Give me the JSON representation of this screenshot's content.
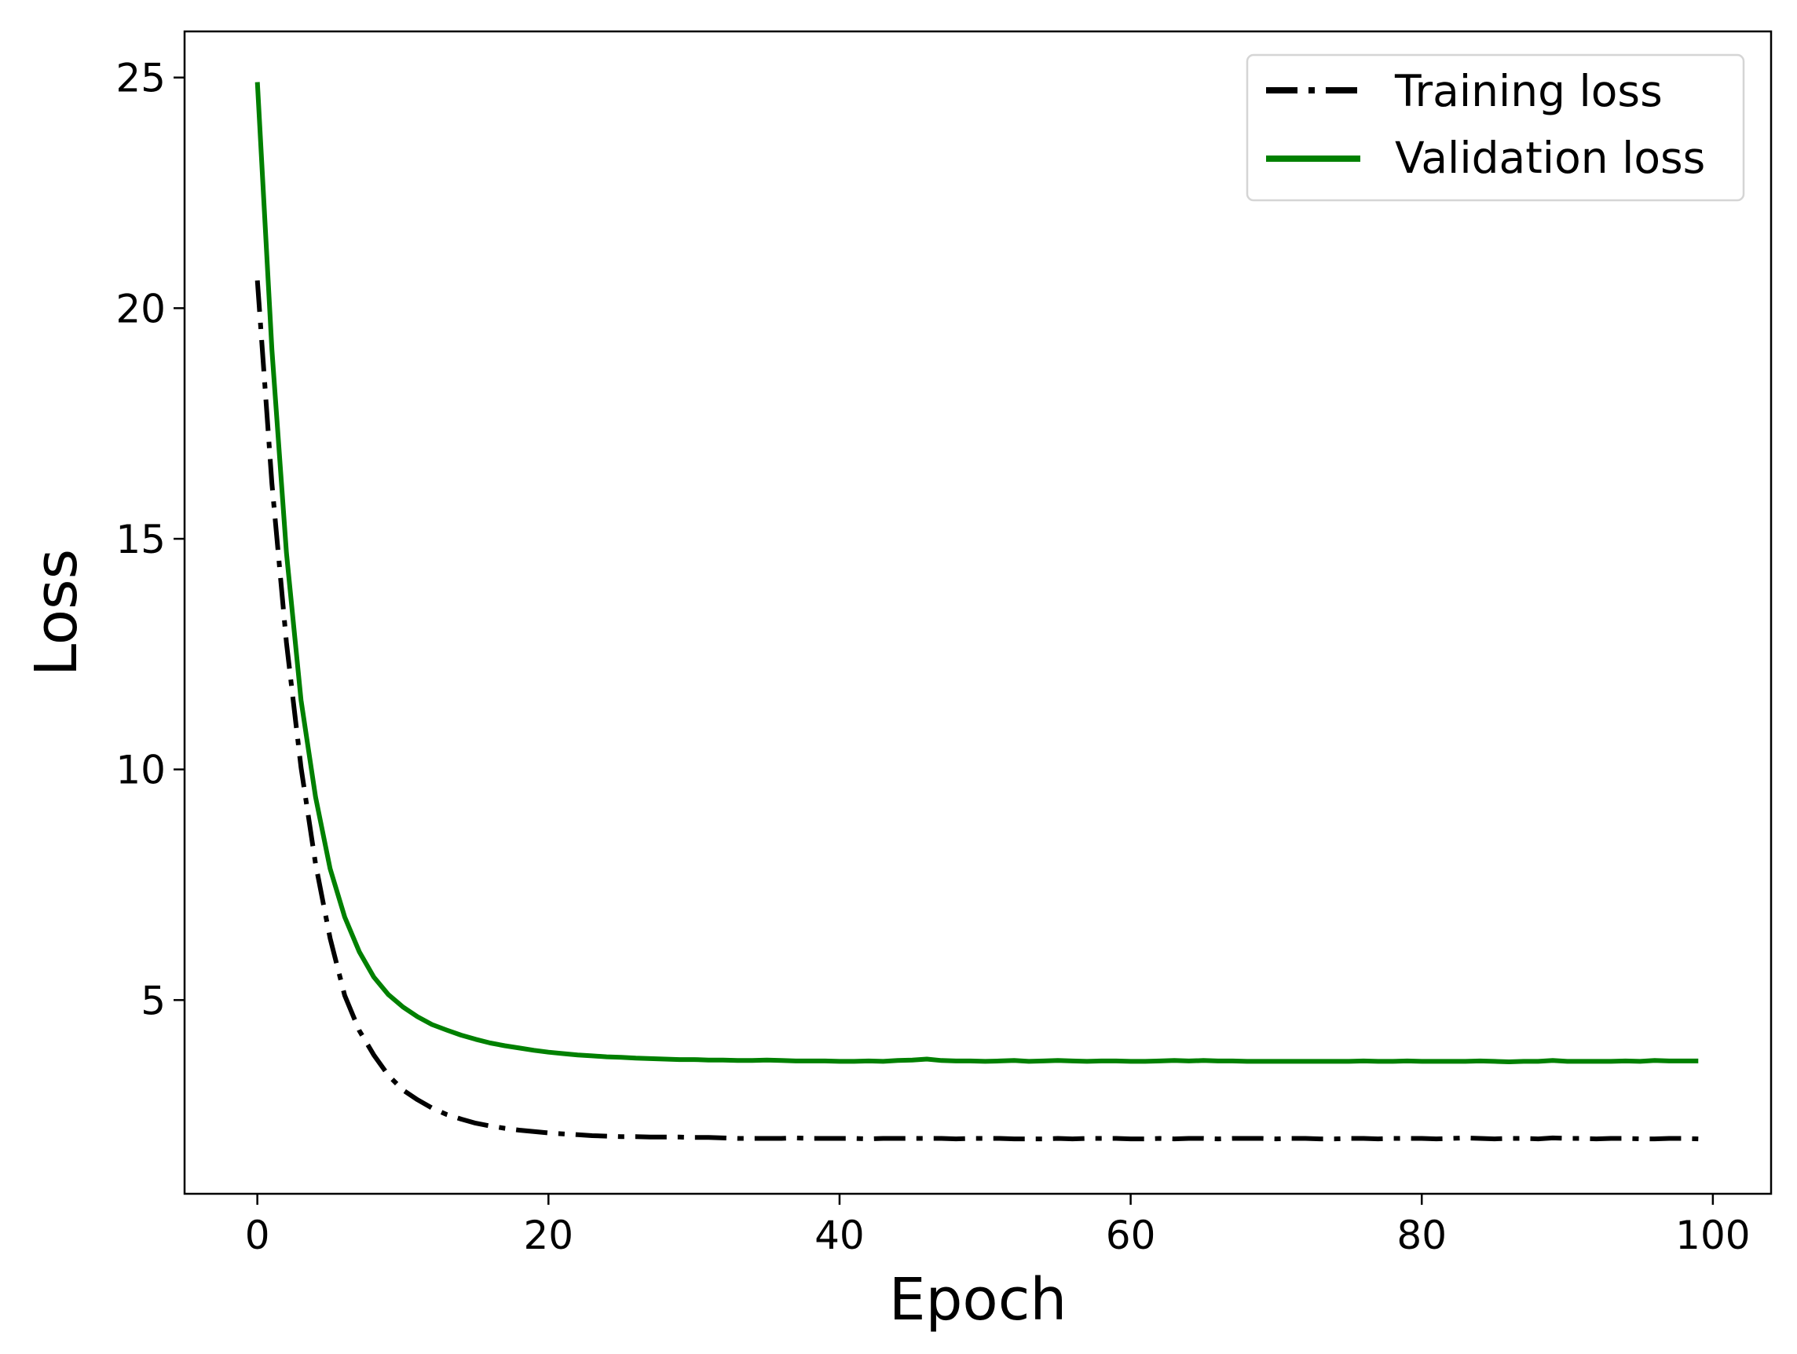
{
  "chart_data": {
    "type": "line",
    "title": "",
    "xlabel": "Epoch",
    "ylabel": "Loss",
    "xlim": [
      -5,
      104
    ],
    "ylim": [
      0.8,
      26.0
    ],
    "xticks": [
      0,
      20,
      40,
      60,
      80,
      100
    ],
    "yticks": [
      5,
      10,
      15,
      20,
      25
    ],
    "grid": false,
    "legend_position": "top-right",
    "x": [
      0,
      1,
      2,
      3,
      4,
      5,
      6,
      7,
      8,
      9,
      10,
      11,
      12,
      13,
      14,
      15,
      16,
      17,
      18,
      19,
      20,
      21,
      22,
      23,
      24,
      25,
      26,
      27,
      28,
      29,
      30,
      31,
      32,
      33,
      34,
      35,
      36,
      37,
      38,
      39,
      40,
      41,
      42,
      43,
      44,
      45,
      46,
      47,
      48,
      49,
      50,
      51,
      52,
      53,
      54,
      55,
      56,
      57,
      58,
      59,
      60,
      61,
      62,
      63,
      64,
      65,
      66,
      67,
      68,
      69,
      70,
      71,
      72,
      73,
      74,
      75,
      76,
      77,
      78,
      79,
      80,
      81,
      82,
      83,
      84,
      85,
      86,
      87,
      88,
      89,
      90,
      91,
      92,
      93,
      94,
      95,
      96,
      97,
      98,
      99
    ],
    "series": [
      {
        "name": "Training loss",
        "color": "#000000",
        "style": "dashdot",
        "values": [
          20.6,
          16.2,
          12.75,
          10.04,
          7.95,
          6.34,
          5.1,
          4.34,
          3.81,
          3.37,
          3.05,
          2.84,
          2.66,
          2.52,
          2.42,
          2.33,
          2.27,
          2.22,
          2.18,
          2.15,
          2.12,
          2.1,
          2.08,
          2.06,
          2.05,
          2.04,
          2.04,
          2.03,
          2.03,
          2.03,
          2.02,
          2.02,
          2.01,
          2.0,
          2.0,
          2.0,
          2.0,
          2.01,
          2.0,
          2.0,
          2.0,
          2.0,
          1.99,
          2.0,
          2.0,
          2.0,
          2.0,
          2.0,
          1.99,
          2.0,
          2.0,
          2.0,
          1.99,
          1.99,
          1.99,
          2.0,
          1.99,
          2.0,
          2.0,
          2.0,
          1.99,
          1.99,
          2.0,
          1.99,
          2.0,
          2.0,
          1.99,
          2.0,
          2.0,
          2.0,
          1.99,
          2.0,
          2.0,
          1.99,
          1.99,
          2.0,
          2.0,
          1.99,
          2.0,
          2.0,
          2.0,
          1.99,
          2.0,
          2.01,
          2.0,
          1.99,
          2.0,
          2.0,
          1.99,
          2.01,
          2.0,
          2.0,
          1.99,
          2.0,
          2.0,
          1.99,
          1.99,
          2.0,
          2.0,
          1.99
        ]
      },
      {
        "name": "Validation loss",
        "color": "#008000",
        "style": "solid",
        "values": [
          24.9,
          19.1,
          14.7,
          11.5,
          9.4,
          7.85,
          6.8,
          6.05,
          5.5,
          5.12,
          4.85,
          4.64,
          4.47,
          4.35,
          4.24,
          4.15,
          4.07,
          4.01,
          3.96,
          3.91,
          3.87,
          3.84,
          3.81,
          3.79,
          3.77,
          3.76,
          3.74,
          3.73,
          3.72,
          3.71,
          3.71,
          3.7,
          3.7,
          3.69,
          3.69,
          3.7,
          3.69,
          3.68,
          3.68,
          3.68,
          3.67,
          3.67,
          3.68,
          3.67,
          3.69,
          3.7,
          3.72,
          3.69,
          3.68,
          3.68,
          3.67,
          3.68,
          3.69,
          3.67,
          3.68,
          3.69,
          3.68,
          3.67,
          3.68,
          3.68,
          3.67,
          3.67,
          3.68,
          3.69,
          3.68,
          3.69,
          3.68,
          3.68,
          3.67,
          3.67,
          3.67,
          3.67,
          3.67,
          3.67,
          3.67,
          3.67,
          3.68,
          3.67,
          3.67,
          3.68,
          3.67,
          3.67,
          3.67,
          3.67,
          3.68,
          3.67,
          3.66,
          3.67,
          3.67,
          3.69,
          3.67,
          3.67,
          3.67,
          3.67,
          3.68,
          3.67,
          3.69,
          3.68,
          3.68,
          3.68
        ]
      }
    ]
  }
}
